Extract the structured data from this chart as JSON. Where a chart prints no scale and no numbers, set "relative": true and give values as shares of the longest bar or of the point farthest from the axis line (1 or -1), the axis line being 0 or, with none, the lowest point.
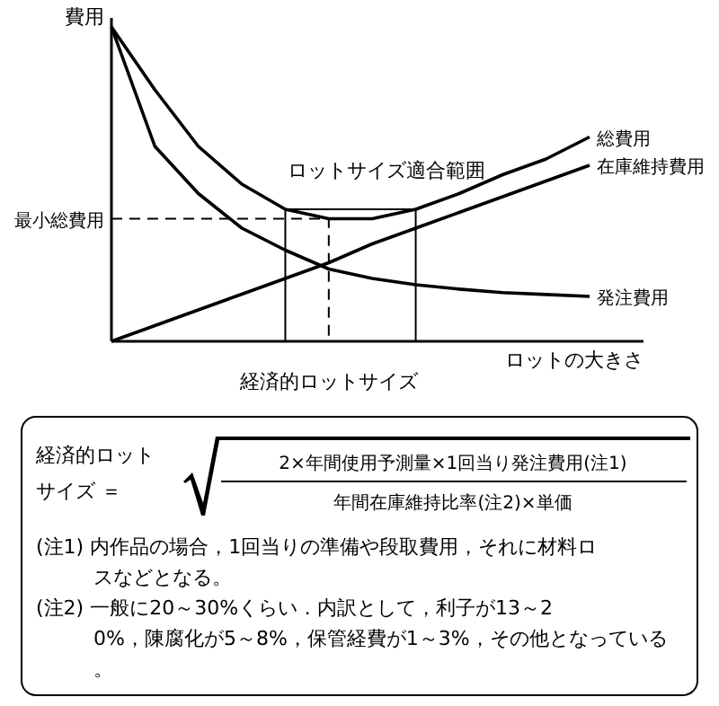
{
  "chart_data": {
    "type": "line",
    "relative": true,
    "ylabel": "費用",
    "xlabel": "ロットの大きさ",
    "legend": false,
    "marker": "none",
    "line_style": "solid",
    "categories": [
      null,
      null,
      null,
      null,
      null,
      null,
      null,
      null,
      null,
      null,
      null,
      null
    ],
    "series": [
      {
        "name": "総費用",
        "color": "#000000",
        "values": [
          1.0,
          0.8,
          0.62,
          0.5,
          0.42,
          0.39,
          0.39,
          0.42,
          0.47,
          0.53,
          0.58,
          0.65
        ]
      },
      {
        "name": "在庫維持費用",
        "color": "#000000",
        "values": [
          0,
          0.05,
          0.1,
          0.15,
          0.2,
          0.25,
          0.31,
          0.36,
          0.41,
          0.46,
          0.51,
          0.56
        ]
      },
      {
        "name": "発注費用",
        "color": "#000000",
        "values": [
          1.0,
          0.62,
          0.47,
          0.36,
          0.29,
          0.23,
          0.2,
          0.18,
          0.166,
          0.155,
          0.149,
          0.143
        ]
      }
    ],
    "annotations": [
      "最小総費用",
      "経済的ロットサイズ",
      "ロットサイズ適合範囲",
      "経済的ロットサイズ ＝",
      "2×年間使用予測量×1回当り発注費用(注1)",
      "年間在庫維持比率(注2)×単価",
      "(注1) 内作品の場合，1回当りの準備や段取費用，それに材料ロスなどとなる。",
      "(注2) 一般に20～30%くらい．内訳として，利子が13～20%，陳腐化が5～8%，保管経費が1～3%，その他となっている。"
    ]
  }
}
